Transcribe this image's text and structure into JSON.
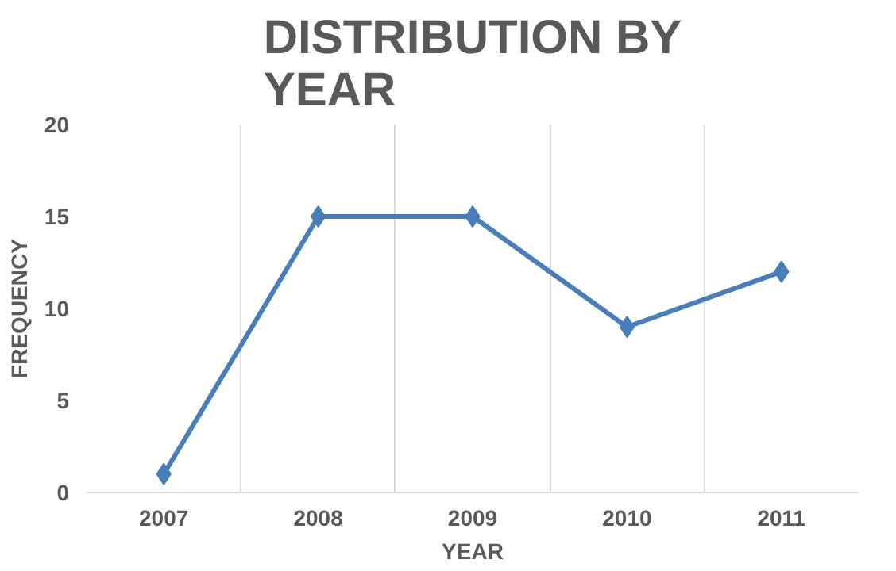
{
  "chart_data": {
    "type": "line",
    "title": "DISTRIBUTION BY YEAR",
    "xlabel": "YEAR",
    "ylabel": "FREQUENCY",
    "categories": [
      "2007",
      "2008",
      "2009",
      "2010",
      "2011"
    ],
    "series": [
      {
        "color": "#4a7ebb",
        "values": [
          1,
          15,
          15,
          9,
          12
        ]
      }
    ],
    "ylim": [
      0,
      20
    ],
    "yticks": [
      0,
      5,
      10,
      15,
      20
    ],
    "grid": "x",
    "marker": "diamond",
    "line_style": "solid"
  }
}
